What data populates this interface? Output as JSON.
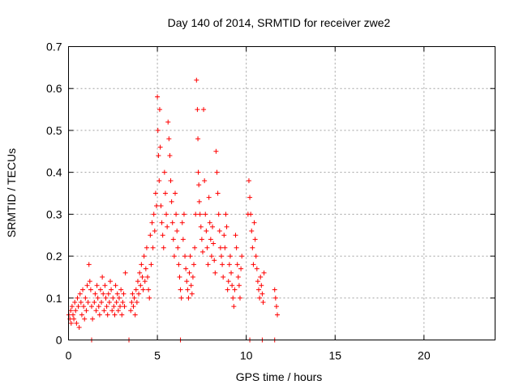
{
  "chart_data": {
    "type": "scatter",
    "title": "Day 140 of 2014, SRMTID for receiver zwe2",
    "xlabel": "GPS time / hours",
    "ylabel": "SRMTID / TECUs",
    "xlim": [
      0,
      24
    ],
    "ylim": [
      0,
      0.7
    ],
    "grid": true,
    "xticks": [
      0,
      5,
      10,
      15,
      20
    ],
    "xtick_labels": [
      "0",
      "5",
      "10",
      "15",
      "20"
    ],
    "yticks": [
      0,
      0.1,
      0.2,
      0.3,
      0.4,
      0.5,
      0.6,
      0.7
    ],
    "ytick_labels": [
      "0",
      "0.1",
      "0.2",
      "0.3",
      "0.4",
      "0.5",
      "0.6",
      "0.7"
    ],
    "marker_color": "#ff0000",
    "series": [
      {
        "name": "SRMTID",
        "marker": "plus",
        "x": [
          0.02,
          0.08,
          0.12,
          0.15,
          0.2,
          0.25,
          0.3,
          0.35,
          0.4,
          0.45,
          0.5,
          0.55,
          0.6,
          0.65,
          0.7,
          0.75,
          0.8,
          0.85,
          0.9,
          0.95,
          1.0,
          1.05,
          1.1,
          1.15,
          1.2,
          1.25,
          1.3,
          1.35,
          1.45,
          1.5,
          1.55,
          1.6,
          1.65,
          1.7,
          1.75,
          1.8,
          1.85,
          1.9,
          1.95,
          2.0,
          2.05,
          2.1,
          2.15,
          2.2,
          2.25,
          2.3,
          2.35,
          2.4,
          2.45,
          2.5,
          2.55,
          2.6,
          2.65,
          2.7,
          2.75,
          2.8,
          2.85,
          2.9,
          2.95,
          3.0,
          3.05,
          3.1,
          3.15,
          3.2,
          3.5,
          3.55,
          3.6,
          3.65,
          3.7,
          3.75,
          3.8,
          3.85,
          3.9,
          3.95,
          4.0,
          4.05,
          4.1,
          4.15,
          4.2,
          4.25,
          4.3,
          4.35,
          4.4,
          4.45,
          4.5,
          4.55,
          4.6,
          4.65,
          4.7,
          4.75,
          4.8,
          4.85,
          4.9,
          4.95,
          5.0,
          5.03,
          5.06,
          5.1,
          5.13,
          5.16,
          5.2,
          5.25,
          5.3,
          5.35,
          5.4,
          5.45,
          5.5,
          5.55,
          5.6,
          5.65,
          5.7,
          5.75,
          5.8,
          5.85,
          5.9,
          5.95,
          6.0,
          6.05,
          6.1,
          6.15,
          6.2,
          6.25,
          6.3,
          6.35,
          6.4,
          6.45,
          6.5,
          6.55,
          6.6,
          6.65,
          6.7,
          6.75,
          6.8,
          6.85,
          6.9,
          6.95,
          7.0,
          7.05,
          7.1,
          7.15,
          7.2,
          7.25,
          7.28,
          7.3,
          7.33,
          7.36,
          7.4,
          7.45,
          7.5,
          7.55,
          7.6,
          7.65,
          7.7,
          7.75,
          7.8,
          7.85,
          7.9,
          7.95,
          8.0,
          8.05,
          8.1,
          8.15,
          8.2,
          8.25,
          8.3,
          8.35,
          8.4,
          8.45,
          8.5,
          8.55,
          8.6,
          8.65,
          8.7,
          8.75,
          8.8,
          8.85,
          8.9,
          8.95,
          9.0,
          9.05,
          9.1,
          9.15,
          9.2,
          9.25,
          9.3,
          9.35,
          9.4,
          9.45,
          9.5,
          9.55,
          9.6,
          9.65,
          9.7,
          9.75,
          10.1,
          10.15,
          10.2,
          10.25,
          10.3,
          10.35,
          10.4,
          10.45,
          10.5,
          10.55,
          10.6,
          10.65,
          10.7,
          10.75,
          10.8,
          10.85,
          10.9,
          10.95,
          11.0,
          11.6,
          11.65,
          11.7,
          11.75,
          1.3,
          3.4,
          6.3,
          10.2,
          10.9,
          11.6
        ],
        "y": [
          0.06,
          0.05,
          0.07,
          0.04,
          0.08,
          0.06,
          0.05,
          0.09,
          0.07,
          0.04,
          0.1,
          0.08,
          0.03,
          0.11,
          0.09,
          0.06,
          0.12,
          0.08,
          0.05,
          0.1,
          0.07,
          0.13,
          0.09,
          0.18,
          0.14,
          0.12,
          0.08,
          0.05,
          0.09,
          0.11,
          0.07,
          0.13,
          0.1,
          0.08,
          0.06,
          0.12,
          0.09,
          0.15,
          0.11,
          0.07,
          0.13,
          0.1,
          0.08,
          0.06,
          0.11,
          0.09,
          0.14,
          0.12,
          0.07,
          0.1,
          0.08,
          0.06,
          0.13,
          0.09,
          0.11,
          0.07,
          0.1,
          0.08,
          0.12,
          0.06,
          0.09,
          0.11,
          0.08,
          0.16,
          0.07,
          0.09,
          0.11,
          0.08,
          0.1,
          0.06,
          0.12,
          0.09,
          0.14,
          0.11,
          0.16,
          0.13,
          0.18,
          0.15,
          0.12,
          0.2,
          0.14,
          0.17,
          0.22,
          0.15,
          0.12,
          0.1,
          0.25,
          0.18,
          0.28,
          0.22,
          0.3,
          0.26,
          0.35,
          0.32,
          0.58,
          0.5,
          0.44,
          0.38,
          0.55,
          0.46,
          0.32,
          0.28,
          0.25,
          0.22,
          0.4,
          0.35,
          0.3,
          0.27,
          0.52,
          0.48,
          0.44,
          0.38,
          0.33,
          0.28,
          0.24,
          0.2,
          0.35,
          0.3,
          0.26,
          0.22,
          0.18,
          0.15,
          0.12,
          0.1,
          0.28,
          0.24,
          0.3,
          0.2,
          0.17,
          0.14,
          0.12,
          0.1,
          0.16,
          0.2,
          0.13,
          0.11,
          0.15,
          0.18,
          0.22,
          0.3,
          0.62,
          0.55,
          0.48,
          0.4,
          0.37,
          0.33,
          0.3,
          0.27,
          0.24,
          0.21,
          0.55,
          0.38,
          0.3,
          0.26,
          0.22,
          0.18,
          0.34,
          0.28,
          0.24,
          0.2,
          0.27,
          0.23,
          0.19,
          0.16,
          0.45,
          0.4,
          0.35,
          0.3,
          0.26,
          0.22,
          0.2,
          0.18,
          0.15,
          0.25,
          0.22,
          0.3,
          0.27,
          0.12,
          0.14,
          0.18,
          0.2,
          0.16,
          0.13,
          0.1,
          0.08,
          0.12,
          0.25,
          0.22,
          0.18,
          0.15,
          0.13,
          0.1,
          0.17,
          0.2,
          0.3,
          0.38,
          0.34,
          0.3,
          0.26,
          0.22,
          0.18,
          0.28,
          0.24,
          0.2,
          0.17,
          0.14,
          0.12,
          0.1,
          0.15,
          0.13,
          0.11,
          0.09,
          0.16,
          0.12,
          0.1,
          0.08,
          0.06,
          0.0,
          0.0,
          0.0,
          0.0,
          0.0,
          0.0
        ]
      }
    ]
  }
}
